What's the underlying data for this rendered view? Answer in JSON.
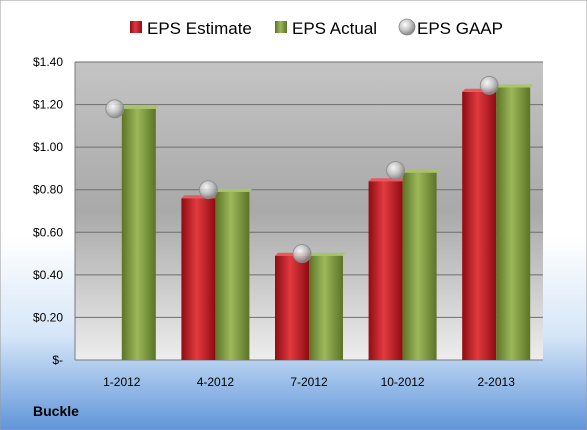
{
  "chart_data": {
    "type": "bar",
    "categories": [
      "1-2012",
      "4-2012",
      "7-2012",
      "10-2012",
      "2-2013"
    ],
    "series": [
      {
        "name": "EPS Estimate",
        "values": [
          null,
          0.76,
          0.49,
          0.84,
          1.26
        ],
        "color": "#c0151c"
      },
      {
        "name": "EPS Actual",
        "values": [
          1.18,
          0.79,
          0.49,
          0.88,
          1.28
        ],
        "color": "#7f9a3c"
      },
      {
        "name": "EPS GAAP",
        "values": [
          1.18,
          0.8,
          0.5,
          0.89,
          1.29
        ],
        "color": "#b0b0b0",
        "mark": "marker"
      }
    ],
    "y_tick_labels": [
      "$-",
      "$0.20",
      "$0.40",
      "$0.60",
      "$0.80",
      "$1.00",
      "$1.20",
      "$1.40"
    ],
    "ylim": [
      0,
      1.4
    ],
    "grid": true,
    "legend_position": "top",
    "company_label": "Buckle"
  }
}
